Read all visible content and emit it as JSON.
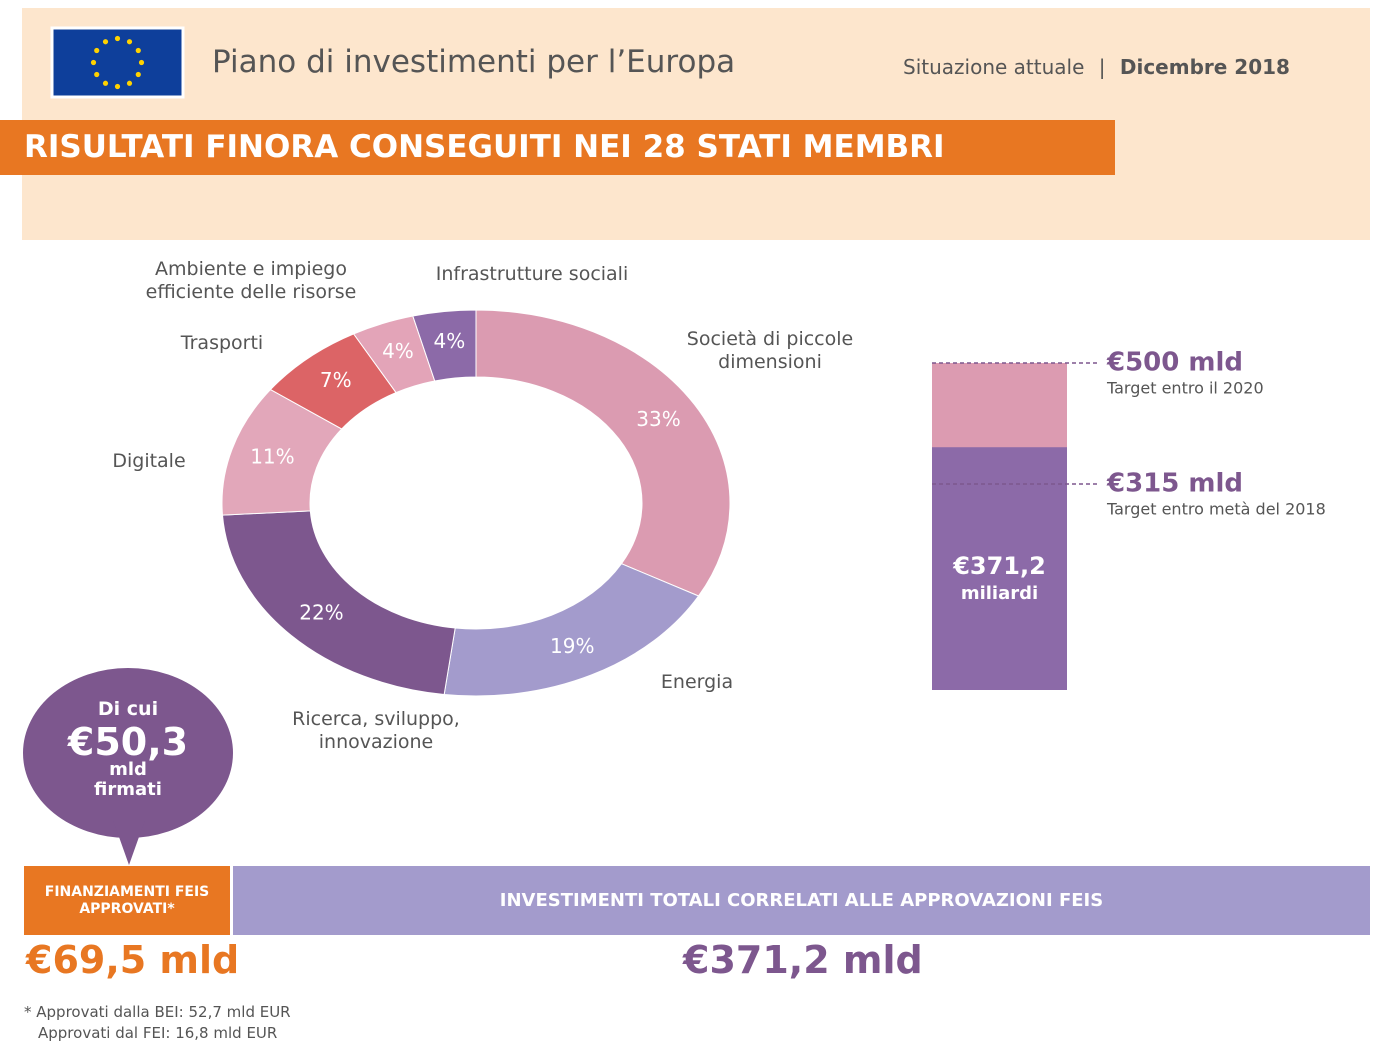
{
  "header": {
    "title": "Piano di investimenti per l’Europa",
    "status": "Situazione attuale",
    "separator": "|",
    "date": "Dicembre 2018",
    "banner": "RISULTATI FINORA CONSEGUITI NEI 28 STATI MEMBRI"
  },
  "chart_data": [
    {
      "type": "pie",
      "donut": true,
      "categories": [
        "Società di piccole dimensioni",
        "Energia",
        "Ricerca, sviluppo, innovazione",
        "Digitale",
        "Trasporti",
        "Ambiente e impiego efficiente delle risorse",
        "Infrastrutture sociali"
      ],
      "values": [
        33,
        19,
        22,
        11,
        7,
        4,
        4
      ],
      "value_labels": [
        "33%",
        "19%",
        "22%",
        "11%",
        "7%",
        "4%",
        "4%"
      ],
      "colors": [
        "#db9bb1",
        "#a39bcc",
        "#7d578e",
        "#e2a7ba",
        "#dc6466",
        "#e3a4b8",
        "#8c6aa8"
      ]
    },
    {
      "type": "bar",
      "ylim": [
        0,
        500
      ],
      "values": [
        371.2
      ],
      "value_labels": [
        "€371,2"
      ],
      "unit_label": "miliardi",
      "color": "#8c6aa8",
      "target_color": "#dc9bb1",
      "targets": [
        {
          "value": 500,
          "label": "€500 mld",
          "note": "Target entro il 2020"
        },
        {
          "value": 315,
          "label": "€315 mld",
          "note": "Target entro metà del 2018"
        }
      ]
    }
  ],
  "bubble": {
    "lead": "Di cui",
    "amount": "€50,3",
    "unit": "mld",
    "note": "firmati"
  },
  "totals": {
    "feis_label": "FINANZIAMENTI FEIS APPROVATI*",
    "feis_value": "€69,5 mld",
    "total_label": "INVESTIMENTI TOTALI CORRELATI ALLE APPROVAZIONI FEIS",
    "total_value": "€371,2 mld"
  },
  "footnotes": [
    "* Approvati dalla BEI: 52,7 mld EUR",
    "Approvati dal FEI: 16,8 mld EUR"
  ]
}
